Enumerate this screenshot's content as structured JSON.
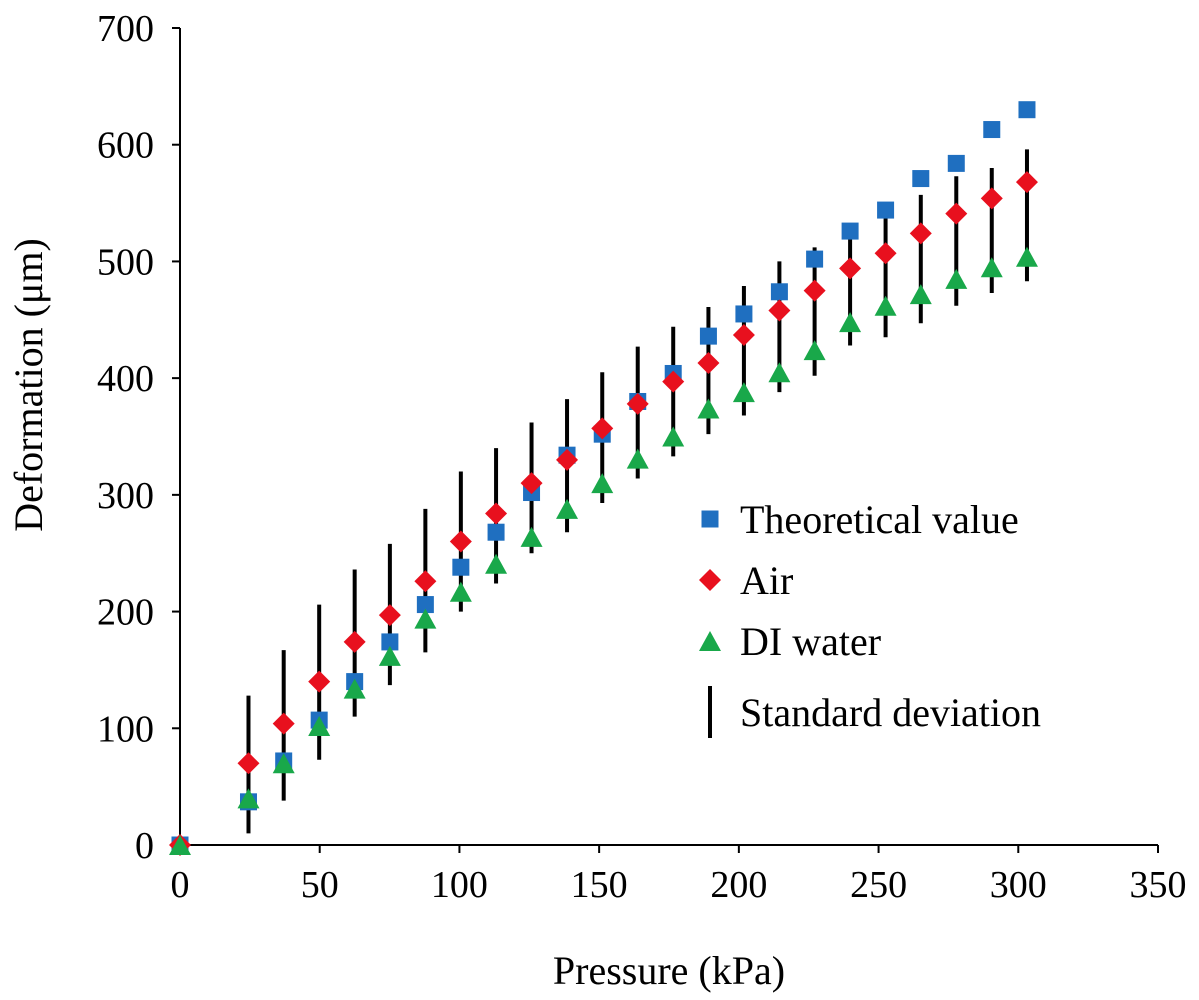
{
  "chart_data": {
    "type": "scatter",
    "title": "",
    "xlabel": "Pressure (kPa)",
    "ylabel": "Deformation (μm)",
    "xlim": [
      0,
      350
    ],
    "ylim": [
      0,
      700
    ],
    "xticks": [
      "0",
      "50",
      "100",
      "150",
      "200",
      "250",
      "300",
      "350"
    ],
    "yticks": [
      "0",
      "100",
      "200",
      "300",
      "400",
      "500",
      "600",
      "700"
    ],
    "grid": false,
    "legend_position": "right",
    "x": [
      0,
      12.7,
      25.3,
      38,
      50.7,
      63.3,
      76,
      88.7,
      101.3,
      114,
      126.7,
      139.3,
      152,
      164.7,
      177.3,
      190,
      202.7,
      215.3,
      228,
      240.7,
      253.3,
      266,
      278.7,
      291.3
    ],
    "series": [
      {
        "name": "Theoretical value",
        "marker": "square",
        "color": "#1f6fc0",
        "values": [
          0,
          37,
          72,
          107,
          140,
          174,
          206,
          238,
          268,
          302,
          334,
          352,
          380,
          404,
          436,
          455,
          474,
          502,
          526,
          544,
          571,
          584,
          613,
          630
        ]
      },
      {
        "name": "Air",
        "marker": "diamond",
        "color": "#e8101e",
        "values": [
          0,
          70,
          104,
          140,
          174,
          197,
          226,
          260,
          284,
          310,
          330,
          357,
          378,
          397,
          413,
          437,
          458,
          475,
          494,
          507,
          524,
          541,
          554,
          568
        ]
      },
      {
        "name": "DI water",
        "marker": "triangle",
        "color": "#19a84a",
        "values": [
          0,
          40,
          70,
          102,
          134,
          162,
          194,
          217,
          241,
          264,
          288,
          310,
          331,
          350,
          374,
          388,
          405,
          424,
          448,
          462,
          472,
          485,
          495,
          504
        ]
      }
    ],
    "error_bars": {
      "name": "Standard deviation",
      "color": "#000000",
      "ranges": [
        [
          0,
          0
        ],
        [
          10,
          128
        ],
        [
          38,
          167
        ],
        [
          73,
          206
        ],
        [
          110,
          236
        ],
        [
          137,
          258
        ],
        [
          165,
          288
        ],
        [
          200,
          320
        ],
        [
          224,
          340
        ],
        [
          250,
          362
        ],
        [
          268,
          382
        ],
        [
          293,
          405
        ],
        [
          314,
          427
        ],
        [
          333,
          444
        ],
        [
          352,
          461
        ],
        [
          368,
          479
        ],
        [
          388,
          500
        ],
        [
          402,
          512
        ],
        [
          428,
          530
        ],
        [
          435,
          545
        ],
        [
          447,
          557
        ],
        [
          462,
          573
        ],
        [
          473,
          580
        ],
        [
          483,
          596
        ]
      ]
    }
  }
}
